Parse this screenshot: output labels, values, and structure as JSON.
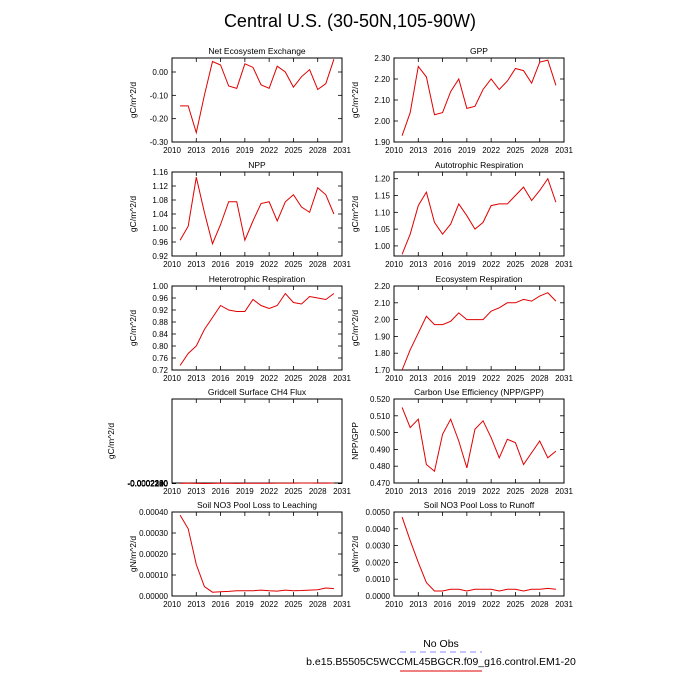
{
  "figure": {
    "title": "Central U.S. (30-50N,105-90W)",
    "legend": [
      {
        "label": "No Obs",
        "color": "#8c8cff",
        "style": "dashed"
      },
      {
        "label": "b.e15.B5505C5WCCML45BGCR.f09_g16.control.EM1-20",
        "color": "#e00000",
        "style": "solid"
      }
    ]
  },
  "chart_data": [
    {
      "type": "line",
      "title": "Net Ecosystem Exchange",
      "xlabel": "",
      "ylabel": "gC/m^2/d",
      "xlim": [
        2010,
        2031
      ],
      "ylim": [
        -0.3,
        0.06
      ],
      "xticks": [
        "2010",
        "2013",
        "2016",
        "2019",
        "2022",
        "2025",
        "2028",
        "2031"
      ],
      "yticks": [
        "-0.30",
        "-0.20",
        "-0.10",
        "0.00"
      ],
      "series": [
        {
          "color": "#e00000",
          "x": [
            2011,
            2012,
            2013,
            2014,
            2015,
            2016,
            2017,
            2018,
            2019,
            2020,
            2021,
            2022,
            2023,
            2024,
            2025,
            2026,
            2027,
            2028,
            2029,
            2030
          ],
          "y": [
            -0.145,
            -0.145,
            -0.26,
            -0.1,
            0.045,
            0.03,
            -0.06,
            -0.07,
            0.035,
            0.02,
            -0.055,
            -0.07,
            0.025,
            0.0,
            -0.065,
            -0.02,
            0.01,
            -0.075,
            -0.05,
            0.055
          ]
        }
      ]
    },
    {
      "type": "line",
      "title": "GPP",
      "xlabel": "",
      "ylabel": "gC/m^2/d",
      "xlim": [
        2010,
        2031
      ],
      "ylim": [
        1.9,
        2.3
      ],
      "xticks": [
        "2010",
        "2013",
        "2016",
        "2019",
        "2022",
        "2025",
        "2028",
        "2031"
      ],
      "yticks": [
        "1.90",
        "2.00",
        "2.10",
        "2.20",
        "2.30"
      ],
      "series": [
        {
          "color": "#e00000",
          "x": [
            2011,
            2012,
            2013,
            2014,
            2015,
            2016,
            2017,
            2018,
            2019,
            2020,
            2021,
            2022,
            2023,
            2024,
            2025,
            2026,
            2027,
            2028,
            2029,
            2030
          ],
          "y": [
            1.93,
            2.04,
            2.26,
            2.21,
            2.03,
            2.04,
            2.14,
            2.2,
            2.06,
            2.07,
            2.15,
            2.2,
            2.15,
            2.19,
            2.25,
            2.24,
            2.18,
            2.28,
            2.29,
            2.17
          ]
        }
      ]
    },
    {
      "type": "line",
      "title": "NPP",
      "xlabel": "",
      "ylabel": "gC/m^2/d",
      "xlim": [
        2010,
        2031
      ],
      "ylim": [
        0.92,
        1.16
      ],
      "xticks": [
        "2010",
        "2013",
        "2016",
        "2019",
        "2022",
        "2025",
        "2028",
        "2031"
      ],
      "yticks": [
        "0.92",
        "0.96",
        "1.00",
        "1.04",
        "1.08",
        "1.12",
        "1.16"
      ],
      "series": [
        {
          "color": "#e00000",
          "x": [
            2011,
            2012,
            2013,
            2014,
            2015,
            2016,
            2017,
            2018,
            2019,
            2020,
            2021,
            2022,
            2023,
            2024,
            2025,
            2026,
            2027,
            2028,
            2029,
            2030
          ],
          "y": [
            0.965,
            1.005,
            1.145,
            1.045,
            0.955,
            1.01,
            1.075,
            1.075,
            0.965,
            1.02,
            1.07,
            1.075,
            1.02,
            1.075,
            1.095,
            1.06,
            1.045,
            1.115,
            1.095,
            1.04
          ]
        }
      ]
    },
    {
      "type": "line",
      "title": "Autotrophic Respiration",
      "xlabel": "",
      "ylabel": "gC/m^2/d",
      "xlim": [
        2010,
        2031
      ],
      "ylim": [
        0.97,
        1.22
      ],
      "xticks": [
        "2010",
        "2013",
        "2016",
        "2019",
        "2022",
        "2025",
        "2028",
        "2031"
      ],
      "yticks": [
        "1.00",
        "1.05",
        "1.10",
        "1.15",
        "1.20"
      ],
      "series": [
        {
          "color": "#e00000",
          "x": [
            2011,
            2012,
            2013,
            2014,
            2015,
            2016,
            2017,
            2018,
            2019,
            2020,
            2021,
            2022,
            2023,
            2024,
            2025,
            2026,
            2027,
            2028,
            2029,
            2030
          ],
          "y": [
            0.975,
            1.035,
            1.12,
            1.16,
            1.07,
            1.035,
            1.065,
            1.125,
            1.09,
            1.05,
            1.07,
            1.12,
            1.125,
            1.125,
            1.15,
            1.175,
            1.135,
            1.165,
            1.2,
            1.13
          ]
        }
      ]
    },
    {
      "type": "line",
      "title": "Heterotrophic Respiration",
      "xlabel": "",
      "ylabel": "gC/m^2/d",
      "xlim": [
        2010,
        2031
      ],
      "ylim": [
        0.72,
        1.0
      ],
      "xticks": [
        "2010",
        "2013",
        "2016",
        "2019",
        "2022",
        "2025",
        "2028",
        "2031"
      ],
      "yticks": [
        "0.72",
        "0.76",
        "0.80",
        "0.84",
        "0.88",
        "0.92",
        "0.96",
        "1.00"
      ],
      "series": [
        {
          "color": "#e00000",
          "x": [
            2011,
            2012,
            2013,
            2014,
            2015,
            2016,
            2017,
            2018,
            2019,
            2020,
            2021,
            2022,
            2023,
            2024,
            2025,
            2026,
            2027,
            2028,
            2029,
            2030
          ],
          "y": [
            0.735,
            0.775,
            0.8,
            0.855,
            0.895,
            0.935,
            0.92,
            0.915,
            0.915,
            0.955,
            0.935,
            0.925,
            0.935,
            0.975,
            0.945,
            0.94,
            0.965,
            0.96,
            0.955,
            0.975
          ]
        }
      ]
    },
    {
      "type": "line",
      "title": "Ecosystem Respiration",
      "xlabel": "",
      "ylabel": "gC/m^2/d",
      "xlim": [
        2010,
        2031
      ],
      "ylim": [
        1.7,
        2.2
      ],
      "xticks": [
        "2010",
        "2013",
        "2016",
        "2019",
        "2022",
        "2025",
        "2028",
        "2031"
      ],
      "yticks": [
        "1.70",
        "1.80",
        "1.90",
        "2.00",
        "2.10",
        "2.20"
      ],
      "series": [
        {
          "color": "#e00000",
          "x": [
            2011,
            2012,
            2013,
            2014,
            2015,
            2016,
            2017,
            2018,
            2019,
            2020,
            2021,
            2022,
            2023,
            2024,
            2025,
            2026,
            2027,
            2028,
            2029,
            2030
          ],
          "y": [
            1.7,
            1.82,
            1.92,
            2.02,
            1.97,
            1.97,
            1.99,
            2.04,
            2.0,
            2.0,
            2.0,
            2.05,
            2.07,
            2.1,
            2.1,
            2.12,
            2.11,
            2.14,
            2.16,
            2.11
          ]
        }
      ]
    },
    {
      "type": "line",
      "title": "Gridcell Surface CH4 Flux",
      "xlabel": "",
      "ylabel": "gC/m^2/d",
      "xlim": [
        2010,
        2031
      ],
      "ylim": [
        -0.00023,
        -0.00218
      ],
      "ylim_note_order": "bottom-to-top",
      "xticks": [
        "2010",
        "2013",
        "2016",
        "2019",
        "2022",
        "2025",
        "2028",
        "2031"
      ],
      "yticks": [
        "-0.0002180",
        "-0.0002200",
        "-0.0002220",
        "-0.0002240",
        "-0.0002260",
        "-0.0002280",
        "-0.0002300"
      ],
      "series": [
        {
          "color": "#e00000",
          "x": [
            2011,
            2012,
            2013,
            2014,
            2015,
            2016,
            2017,
            2018,
            2019,
            2020,
            2021,
            2022,
            2023,
            2024,
            2025,
            2026,
            2027,
            2028,
            2029,
            2030
          ],
          "y": [
            -0.0002225,
            -0.0002268,
            -0.0002218,
            -0.0002183,
            -0.0002222,
            -0.0002262,
            -0.0002237,
            -0.0002207,
            -0.0002232,
            -0.0002242,
            -0.0002232,
            -0.0002243,
            -0.0002262,
            -0.0002278,
            -0.0002263,
            -0.000229,
            -0.000229,
            -0.0002268,
            -0.0002283,
            -0.0002295
          ]
        }
      ]
    },
    {
      "type": "line",
      "title": "Carbon Use Efficiency (NPP/GPP)",
      "xlabel": "",
      "ylabel": "NPP/GPP",
      "xlim": [
        2010,
        2031
      ],
      "ylim": [
        0.47,
        0.52
      ],
      "xticks": [
        "2010",
        "2013",
        "2016",
        "2019",
        "2022",
        "2025",
        "2028",
        "2031"
      ],
      "yticks": [
        "0.470",
        "0.480",
        "0.490",
        "0.500",
        "0.510",
        "0.520"
      ],
      "series": [
        {
          "color": "#e00000",
          "x": [
            2011,
            2012,
            2013,
            2014,
            2015,
            2016,
            2017,
            2018,
            2019,
            2020,
            2021,
            2022,
            2023,
            2024,
            2025,
            2026,
            2027,
            2028,
            2029,
            2030
          ],
          "y": [
            0.515,
            0.503,
            0.508,
            0.481,
            0.477,
            0.499,
            0.508,
            0.495,
            0.479,
            0.502,
            0.507,
            0.497,
            0.485,
            0.496,
            0.494,
            0.481,
            0.488,
            0.495,
            0.485,
            0.489
          ]
        }
      ]
    },
    {
      "type": "line",
      "title": "Soil NO3 Pool Loss to Leaching",
      "xlabel": "",
      "ylabel": "gN/m^2/d",
      "xlim": [
        2010,
        2031
      ],
      "ylim": [
        0.0,
        0.0004
      ],
      "xticks": [
        "2010",
        "2013",
        "2016",
        "2019",
        "2022",
        "2025",
        "2028",
        "2031"
      ],
      "yticks": [
        "0.00000",
        "0.00010",
        "0.00020",
        "0.00030",
        "0.00040"
      ],
      "series": [
        {
          "color": "#e00000",
          "x": [
            2011,
            2012,
            2013,
            2014,
            2015,
            2016,
            2017,
            2018,
            2019,
            2020,
            2021,
            2022,
            2023,
            2024,
            2025,
            2026,
            2027,
            2028,
            2029,
            2030
          ],
          "y": [
            0.000385,
            0.00032,
            0.00015,
            4.5e-05,
            1.8e-05,
            2e-05,
            2.2e-05,
            2.5e-05,
            2.5e-05,
            2.5e-05,
            2.8e-05,
            2.5e-05,
            2.3e-05,
            2.8e-05,
            2.5e-05,
            2.6e-05,
            2.8e-05,
            3e-05,
            3.8e-05,
            3.5e-05
          ]
        }
      ]
    },
    {
      "type": "line",
      "title": "Soil NO3 Pool Loss to Runoff",
      "xlabel": "",
      "ylabel": "gN/m^2/d",
      "xlim": [
        2010,
        2031
      ],
      "ylim": [
        0.0,
        0.005
      ],
      "xticks": [
        "2010",
        "2013",
        "2016",
        "2019",
        "2022",
        "2025",
        "2028",
        "2031"
      ],
      "yticks": [
        "0.0000",
        "0.0010",
        "0.0020",
        "0.0030",
        "0.0040",
        "0.0050"
      ],
      "series": [
        {
          "color": "#e00000",
          "x": [
            2011,
            2012,
            2013,
            2014,
            2015,
            2016,
            2017,
            2018,
            2019,
            2020,
            2021,
            2022,
            2023,
            2024,
            2025,
            2026,
            2027,
            2028,
            2029,
            2030
          ],
          "y": [
            0.0047,
            0.0033,
            0.002,
            0.0008,
            0.0003,
            0.0003,
            0.0004,
            0.0004,
            0.0003,
            0.0004,
            0.0004,
            0.0004,
            0.0003,
            0.0004,
            0.0004,
            0.0003,
            0.0004,
            0.0004,
            0.00045,
            0.0004
          ]
        }
      ]
    }
  ]
}
